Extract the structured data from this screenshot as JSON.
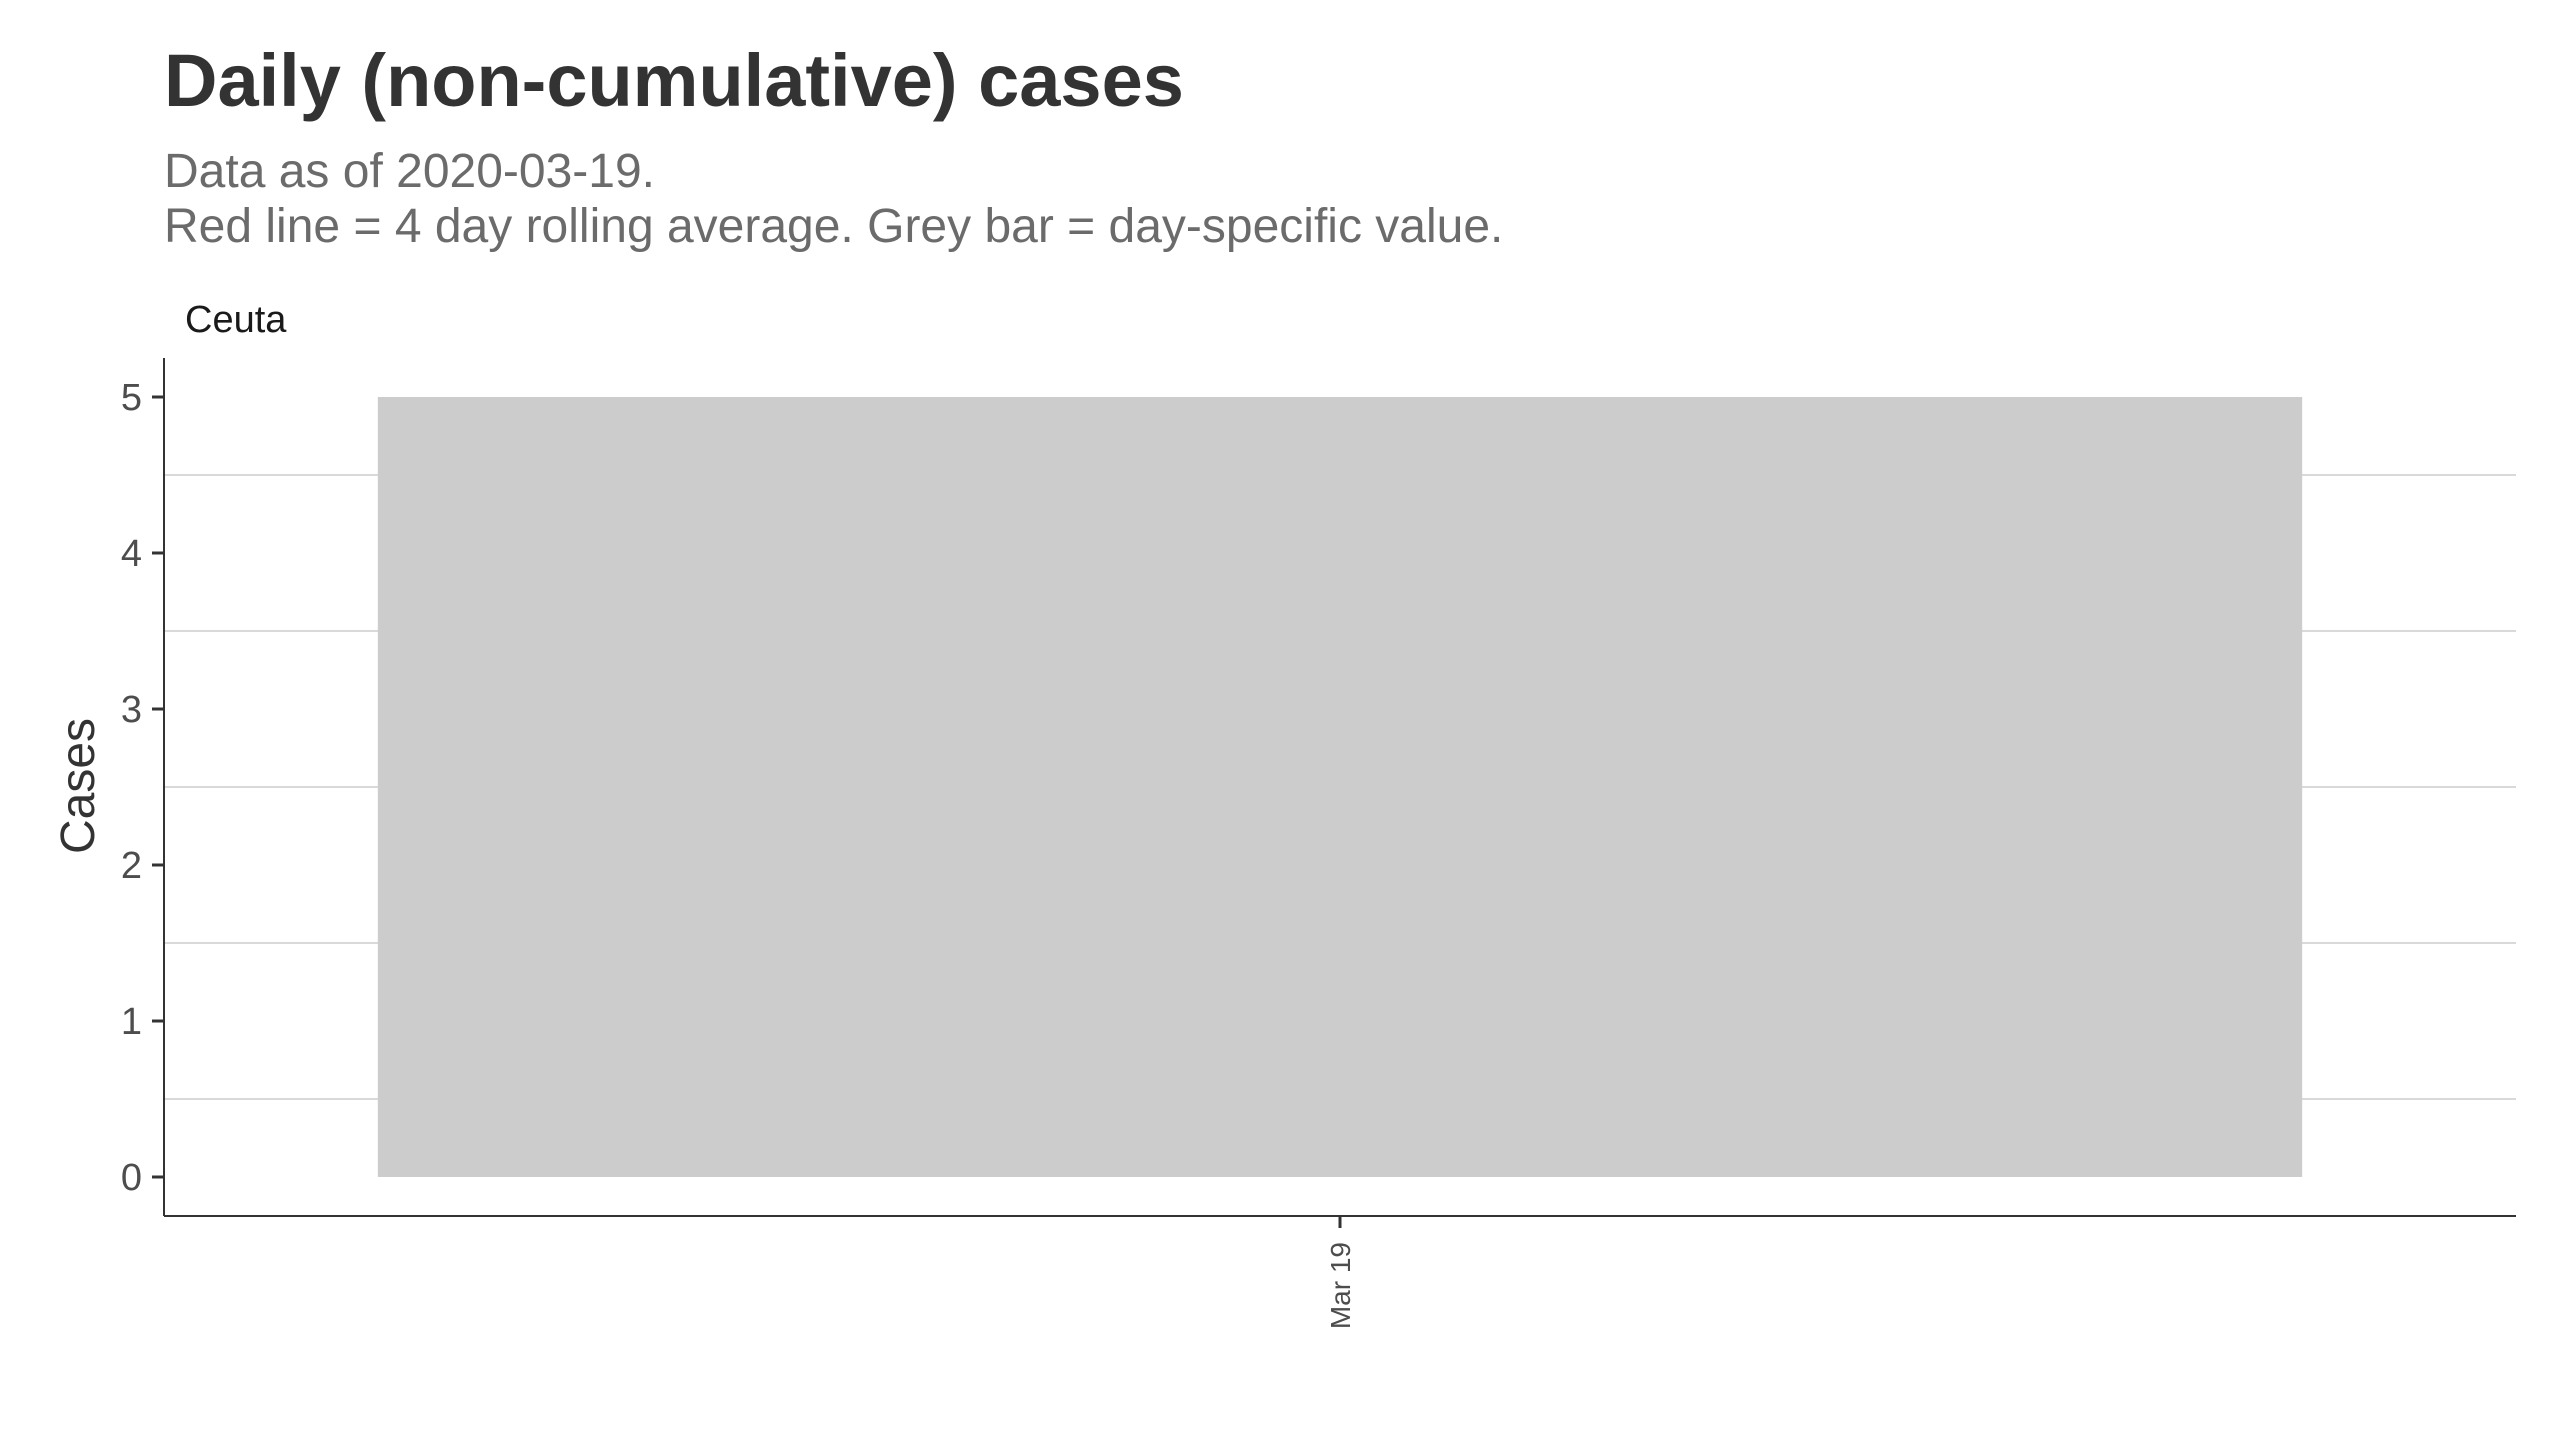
{
  "header": {
    "title": "Daily (non-cumulative) cases",
    "subtitle_line1": "Data as of 2020-03-19.",
    "subtitle_line2": "Red line = 4 day rolling average. Grey bar = day-specific value."
  },
  "chart_data": {
    "type": "bar",
    "panel_label": "Ceuta",
    "categories": [
      "Mar 19"
    ],
    "values": [
      5
    ],
    "title": "Daily (non-cumulative) cases",
    "ylabel": "Cases",
    "xlabel": "",
    "ylim": [
      -0.25,
      5.25
    ],
    "yticks": [
      0,
      1,
      2,
      3,
      4,
      5
    ],
    "grid": true,
    "legend": "none",
    "colors": {
      "bar": "#cccccc",
      "grid": "#d9d9d9",
      "axis": "#333333",
      "tick_text": "#4d4d4d",
      "label_text": "#333333"
    }
  }
}
